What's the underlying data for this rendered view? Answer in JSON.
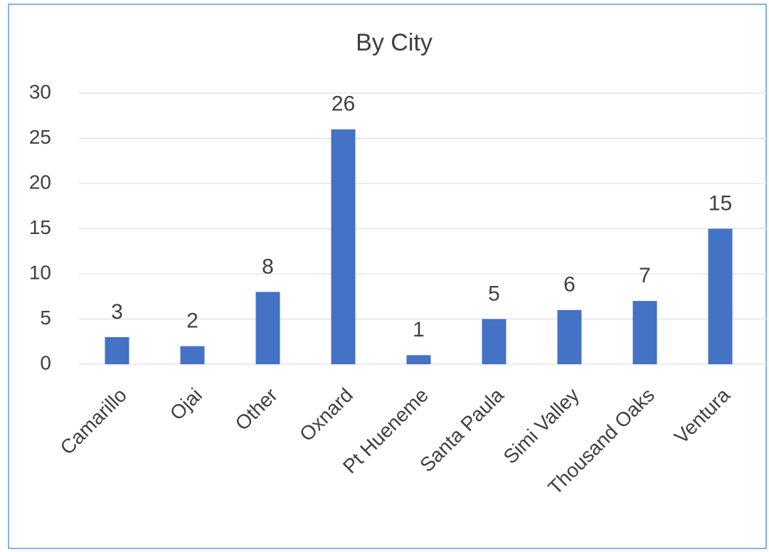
{
  "chart_data": {
    "type": "bar",
    "title": "By City",
    "categories": [
      "Camarillo",
      "Ojai",
      "Other",
      "Oxnard",
      "Pt Hueneme",
      "Santa Paula",
      "Simi Valley",
      "Thousand Oaks",
      "Ventura"
    ],
    "values": [
      3,
      2,
      8,
      26,
      1,
      5,
      6,
      7,
      15
    ],
    "color": "#4472c4",
    "ylim": [
      0,
      30
    ],
    "yticks": [
      0,
      5,
      10,
      15,
      20,
      25,
      30
    ],
    "grid": true
  }
}
